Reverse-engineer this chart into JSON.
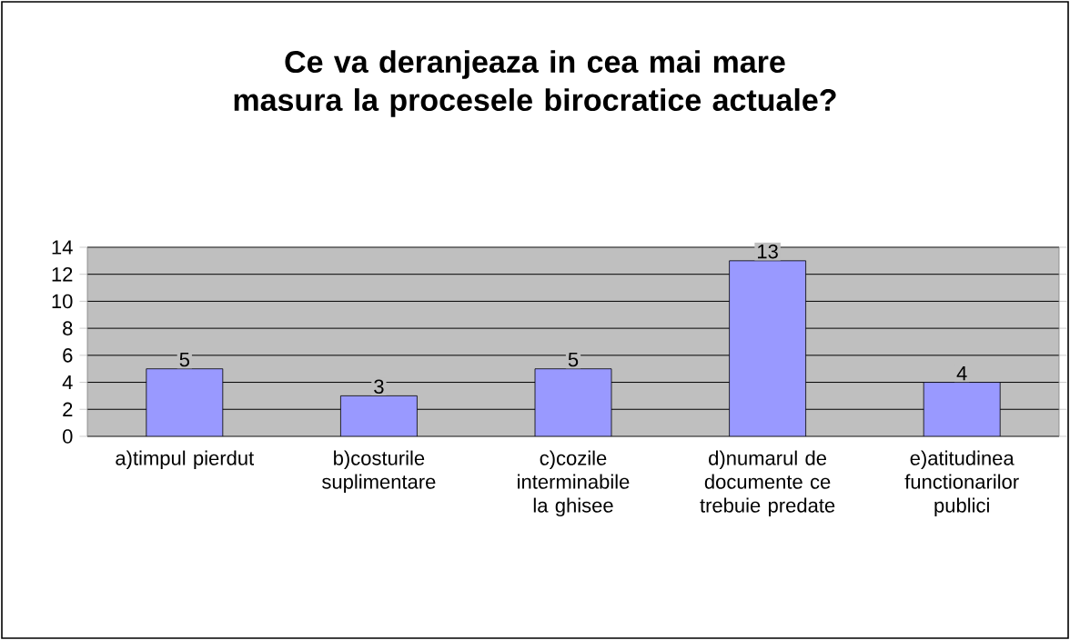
{
  "chart_data": {
    "type": "bar",
    "title": "Ce va deranjeaza in cea mai mare masura la procesele birocratice actuale?",
    "categories": [
      "a)timpul pierdut",
      "b)costurile suplimentare",
      "c)cozile interminabile la ghisee",
      "d)numarul de documente ce trebuie predate",
      "e)atitudinea functionarilor publici"
    ],
    "values": [
      5,
      3,
      5,
      13,
      4
    ],
    "color": "#9999ff",
    "ylim": [
      0,
      14
    ],
    "yticks": [
      0,
      2,
      4,
      6,
      8,
      10,
      12,
      14
    ],
    "grid": "y",
    "data_labels": true
  }
}
